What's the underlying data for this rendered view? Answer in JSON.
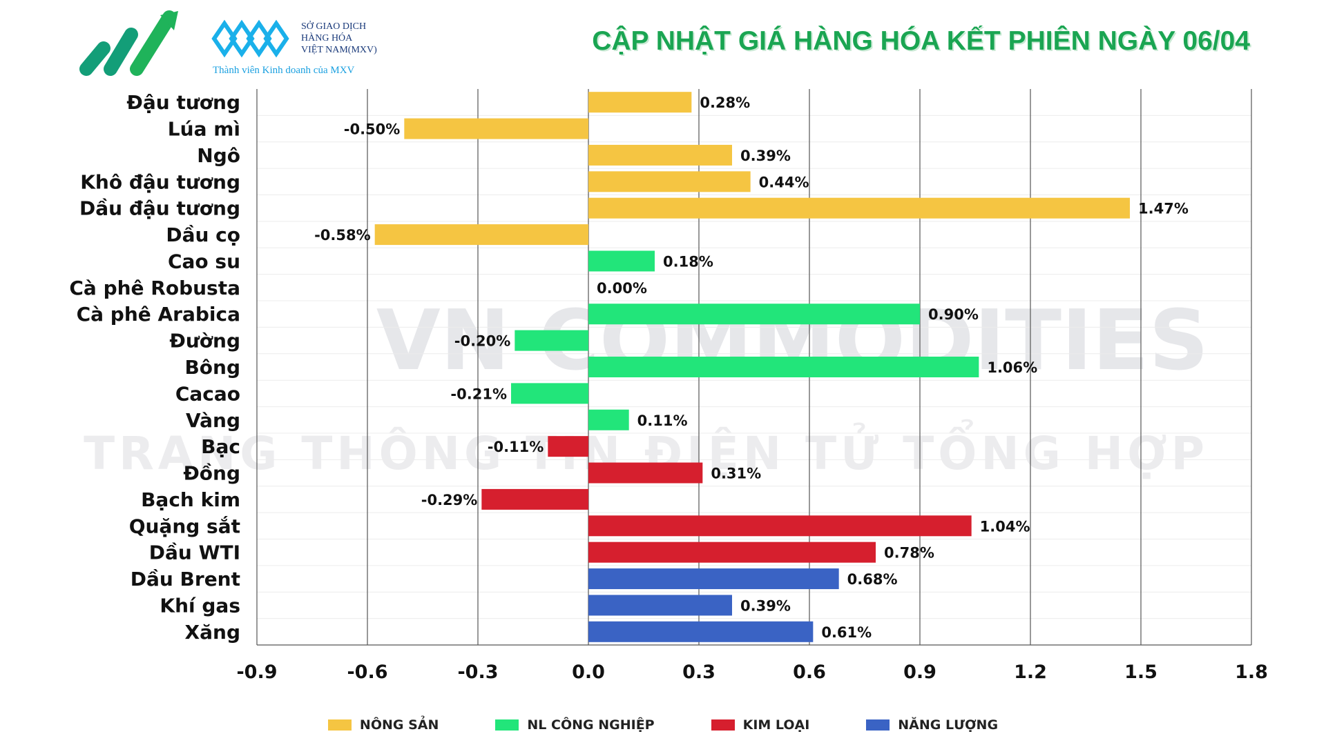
{
  "header": {
    "title": "CẬP NHẬT GIÁ HÀNG HÓA KẾT PHIÊN NGÀY 06/04",
    "logo_mxv_lines": [
      "SỞ GIAO DỊCH",
      "HÀNG HÓA",
      "VIỆT NAM(MXV)"
    ],
    "logo_mxv_sub": "Thành viên Kinh doanh của MXV"
  },
  "watermark": [
    "VN COMMODITIES",
    "TRANG THÔNG TIN ĐIỆN TỬ TỔNG HỢP"
  ],
  "colors": {
    "nong_san": "#f5c542",
    "nl_cong_nghiep": "#22e57a",
    "kim_loai": "#d61f2e",
    "nang_luong": "#3a63c4",
    "title": "#1aa552"
  },
  "chart_data": {
    "type": "bar",
    "orientation": "horizontal",
    "title": "CẬP NHẬT GIÁ HÀNG HÓA KẾT PHIÊN NGÀY 06/04",
    "xlim": [
      -0.9,
      1.8
    ],
    "xticks": [
      "-0.9",
      "-0.6",
      "-0.3",
      "0.0",
      "0.3",
      "0.6",
      "0.9",
      "1.2",
      "1.5",
      "1.8"
    ],
    "grid": "vertical",
    "legend_placement": "bottom",
    "legend": [
      {
        "key": "nong_san",
        "label": "NÔNG SẢN"
      },
      {
        "key": "nl_cong_nghiep",
        "label": "NL CÔNG NGHIỆP"
      },
      {
        "key": "kim_loai",
        "label": "KIM LOẠI"
      },
      {
        "key": "nang_luong",
        "label": "NĂNG LƯỢNG"
      }
    ],
    "items": [
      {
        "name": "Đậu tương",
        "value": 0.28,
        "label": "0.28%",
        "group": "nong_san"
      },
      {
        "name": "Lúa mì",
        "value": -0.5,
        "label": "-0.50%",
        "group": "nong_san"
      },
      {
        "name": "Ngô",
        "value": 0.39,
        "label": "0.39%",
        "group": "nong_san"
      },
      {
        "name": "Khô đậu tương",
        "value": 0.44,
        "label": "0.44%",
        "group": "nong_san"
      },
      {
        "name": "Dầu đậu tương",
        "value": 1.47,
        "label": "1.47%",
        "group": "nong_san"
      },
      {
        "name": "Dầu cọ",
        "value": -0.58,
        "label": "-0.58%",
        "group": "nong_san"
      },
      {
        "name": "Cao su",
        "value": 0.18,
        "label": "0.18%",
        "group": "nl_cong_nghiep"
      },
      {
        "name": "Cà phê Robusta",
        "value": 0.0,
        "label": "0.00%",
        "group": "nl_cong_nghiep"
      },
      {
        "name": "Cà phê Arabica",
        "value": 0.9,
        "label": "0.90%",
        "group": "nl_cong_nghiep"
      },
      {
        "name": "Đường",
        "value": -0.2,
        "label": "-0.20%",
        "group": "nl_cong_nghiep"
      },
      {
        "name": "Bông",
        "value": 1.06,
        "label": "1.06%",
        "group": "nl_cong_nghiep"
      },
      {
        "name": "Cacao",
        "value": -0.21,
        "label": "-0.21%",
        "group": "nl_cong_nghiep"
      },
      {
        "name": "Vàng",
        "value": 0.11,
        "label": "0.11%",
        "group": "kim_loai_green"
      },
      {
        "name": "Bạc",
        "value": -0.11,
        "label": "-0.11%",
        "group": "kim_loai"
      },
      {
        "name": "Đồng",
        "value": 0.31,
        "label": "0.31%",
        "group": "kim_loai"
      },
      {
        "name": "Bạch kim",
        "value": -0.29,
        "label": "-0.29%",
        "group": "kim_loai"
      },
      {
        "name": "Quặng sắt",
        "value": 1.04,
        "label": "1.04%",
        "group": "kim_loai"
      },
      {
        "name": "Dầu WTI",
        "value": 0.78,
        "label": "0.78%",
        "group": "kim_loai"
      },
      {
        "name": "Dầu Brent",
        "value": 0.68,
        "label": "0.68%",
        "group": "nang_luong"
      },
      {
        "name": "Khí gas",
        "value": 0.39,
        "label": "0.39%",
        "group": "nang_luong"
      },
      {
        "name": "Xăng",
        "value": 0.61,
        "label": "0.61%",
        "group": "nang_luong"
      }
    ]
  }
}
